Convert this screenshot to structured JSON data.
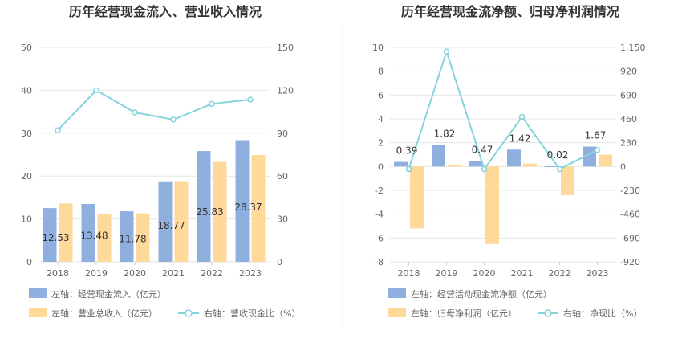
{
  "colors": {
    "bar_blue": "#8fb0df",
    "bar_orange": "#ffd999",
    "line": "#85d4dc",
    "axis_text": "#666666",
    "title": "#333333"
  },
  "chart_data": [
    {
      "type": "bar",
      "title": "历年经营现金流入、营业收入情况",
      "categories": [
        "2018",
        "2019",
        "2020",
        "2021",
        "2022",
        "2023"
      ],
      "left_ticks": [
        "0",
        "10",
        "20",
        "30",
        "40",
        "50"
      ],
      "right_ticks": [
        "0",
        "30",
        "60",
        "90",
        "120",
        "150"
      ],
      "ylim_left": [
        0,
        50
      ],
      "ylim_right": [
        0,
        150
      ],
      "series": [
        {
          "name": "左轴：经营现金流入（亿元）",
          "axis": "left",
          "kind": "bar",
          "values": [
            12.53,
            13.48,
            11.78,
            18.77,
            25.83,
            28.37
          ],
          "labels": [
            "12.53",
            "13.48",
            "11.78",
            "18.77",
            "25.83",
            "28.37"
          ]
        },
        {
          "name": "左轴：营业总收入（亿元）",
          "axis": "left",
          "kind": "bar",
          "values": [
            13.6,
            11.2,
            11.3,
            18.8,
            23.3,
            24.9
          ]
        },
        {
          "name": "右轴：营收现金比（%）",
          "axis": "right",
          "kind": "line",
          "values": [
            92,
            120,
            104.5,
            99.5,
            110.5,
            113.5
          ]
        }
      ],
      "grid": true,
      "legend_position": "bottom"
    },
    {
      "type": "bar",
      "title": "历年经营现金流净额、归母净利润情况",
      "categories": [
        "2018",
        "2019",
        "2020",
        "2021",
        "2022",
        "2023"
      ],
      "left_ticks": [
        "-8",
        "-6",
        "-4",
        "-2",
        "0",
        "2",
        "4",
        "6",
        "8",
        "10"
      ],
      "right_ticks": [
        "-920",
        "-690",
        "-460",
        "-230",
        "0",
        "230",
        "460",
        "690",
        "920",
        "1,150"
      ],
      "ylim_left": [
        -8,
        10
      ],
      "ylim_right": [
        -920,
        1150
      ],
      "series": [
        {
          "name": "左轴：经营活动现金流净额（亿元）",
          "axis": "left",
          "kind": "bar",
          "values": [
            0.39,
            1.82,
            0.47,
            1.42,
            0.02,
            1.67
          ],
          "labels": [
            "0.39",
            "1.82",
            "0.47",
            "1.42",
            "0.02",
            "1.67"
          ]
        },
        {
          "name": "左轴：归母净利润（亿元）",
          "axis": "left",
          "kind": "bar",
          "values": [
            -5.2,
            0.17,
            -6.5,
            0.25,
            -2.4,
            1.0
          ]
        },
        {
          "name": "右轴：净现比（%）",
          "axis": "right",
          "kind": "line",
          "values": [
            -25,
            1110,
            -25,
            480,
            -25,
            160
          ]
        }
      ],
      "grid": true,
      "legend_position": "bottom"
    }
  ]
}
